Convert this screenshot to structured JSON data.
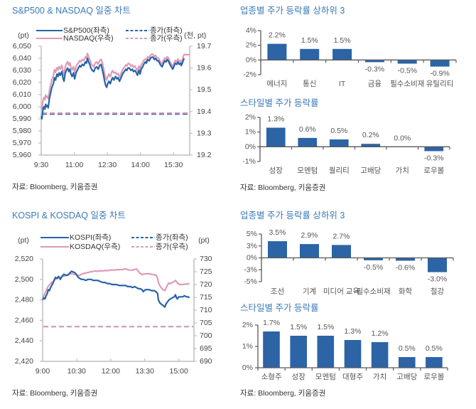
{
  "chart_data": [
    {
      "type": "line",
      "title": "S&P500 & NASDAQ 일중 차트",
      "source": "자료: Bloomberg, 키움증권",
      "ylabel_left": "(pt)",
      "ylabel_right": "(천, pt)",
      "legend_position": "top",
      "grid": false,
      "xlim": [
        "9:30",
        "16:14"
      ],
      "x_ticks": [
        "9:30",
        "11:00",
        "12:30",
        "14:00",
        "15:30"
      ],
      "ylim_left": [
        5960,
        6050
      ],
      "y_ticks_left": [
        "6,050",
        "6,040",
        "6,030",
        "6,020",
        "6,010",
        "6,000",
        "5,990",
        "5,980",
        "5,970",
        "5,960"
      ],
      "ylim_right": [
        19.2,
        19.7
      ],
      "y_ticks_right": [
        "19.7",
        "19.6",
        "19.5",
        "19.4",
        "19.3",
        "19.2"
      ],
      "x": [
        "9:30",
        "9:32",
        "9:34",
        "9:36",
        "9:38",
        "9:40",
        "9:42",
        "9:44",
        "9:47",
        "9:49",
        "9:51",
        "9:53",
        "9:56",
        "9:59",
        "10:03",
        "10:06",
        "10:09",
        "10:13",
        "10:16",
        "10:19",
        "10:22",
        "10:26",
        "10:29",
        "10:32",
        "10:35",
        "10:38",
        "10:42",
        "10:45",
        "10:48",
        "10:51",
        "10:54",
        "10:58",
        "11:01",
        "11:05",
        "11:08",
        "11:11",
        "11:15",
        "11:18",
        "11:22",
        "11:26",
        "11:30",
        "11:33",
        "11:36",
        "11:39",
        "11:42",
        "11:45",
        "11:49",
        "11:53",
        "11:57",
        "12:01",
        "12:05",
        "12:09",
        "12:13",
        "12:16",
        "12:19",
        "12:22",
        "12:25",
        "12:28",
        "12:31",
        "12:34",
        "12:38",
        "12:41",
        "12:44",
        "12:48",
        "12:52",
        "12:56",
        "12:59",
        "13:03",
        "13:06",
        "13:10",
        "13:13",
        "13:16",
        "13:20",
        "13:23",
        "13:26",
        "13:30",
        "13:34",
        "13:38",
        "13:41",
        "13:45",
        "13:49",
        "13:52",
        "13:56",
        "13:59",
        "14:02",
        "14:06",
        "14:09",
        "14:13",
        "14:16",
        "14:20",
        "14:24",
        "14:27",
        "14:31",
        "14:34",
        "14:38",
        "14:41",
        "14:45",
        "14:49",
        "14:52",
        "14:56",
        "14:59",
        "15:03",
        "15:06",
        "15:10",
        "15:13",
        "15:16",
        "15:20",
        "15:24",
        "15:28",
        "15:32",
        "15:35",
        "15:39",
        "15:42",
        "15:46",
        "15:49",
        "15:51",
        "15:54",
        "15:56",
        "15:59",
        "16:05",
        "16:14"
      ],
      "series": [
        {
          "name": "S&P500(좌측)",
          "axis": "left",
          "style": "solid",
          "color": "#2763a8",
          "values": [
            5992,
            5990,
            5996,
            5999,
            6000,
            5998,
            6002,
            6000,
            6001,
            5999,
            6004,
            6008,
            6012,
            6016,
            6019,
            6024,
            6022,
            6027,
            6025,
            6028,
            6026,
            6029,
            6024,
            6021,
            6027,
            6030,
            6032,
            6029,
            6031,
            6027,
            6025,
            6028,
            6023,
            6028,
            6030,
            6032,
            6034,
            6033,
            6035,
            6034,
            6037,
            6036,
            6040,
            6037,
            6035,
            6032,
            6030,
            6029,
            6032,
            6033,
            6031,
            6034,
            6035,
            6031,
            6027,
            6022,
            6018,
            6016,
            6019,
            6021,
            6019,
            6022,
            6024,
            6022,
            6025,
            6023,
            6024,
            6021,
            6023,
            6026,
            6028,
            6029,
            6031,
            6030,
            6032,
            6032,
            6030,
            6031,
            6029,
            6030,
            6028,
            6026,
            6030,
            6027,
            6031,
            6033,
            6035,
            6037,
            6036,
            6039,
            6038,
            6040,
            6041,
            6041,
            6039,
            6040,
            6038,
            6038,
            6036,
            6034,
            6033,
            6036,
            6038,
            6037,
            6039,
            6038,
            6035,
            6033,
            6031,
            6034,
            6036,
            6035,
            6037,
            6035,
            6036,
            6034,
            6036,
            6038,
            6040,
            null,
            null
          ]
        },
        {
          "name": "NASDAQ(우측)",
          "axis": "right",
          "style": "solid",
          "color": "#dd9bb8",
          "values": [
            19.42,
            19.409,
            19.443,
            19.459,
            19.465,
            19.454,
            19.476,
            19.465,
            19.47,
            19.459,
            19.48,
            19.503,
            19.525,
            19.547,
            19.564,
            19.592,
            19.58,
            19.602,
            19.591,
            19.607,
            19.596,
            19.613,
            19.585,
            19.568,
            19.602,
            19.618,
            19.629,
            19.613,
            19.624,
            19.602,
            19.591,
            19.607,
            19.579,
            19.607,
            19.618,
            19.623,
            19.634,
            19.628,
            19.64,
            19.634,
            19.651,
            19.645,
            19.667,
            19.651,
            19.64,
            19.623,
            19.612,
            19.606,
            19.623,
            19.628,
            19.617,
            19.634,
            19.64,
            19.627,
            19.605,
            19.577,
            19.555,
            19.544,
            19.56,
            19.572,
            19.56,
            19.577,
            19.588,
            19.577,
            19.581,
            19.57,
            19.575,
            19.558,
            19.57,
            19.586,
            19.597,
            19.603,
            19.614,
            19.609,
            19.62,
            19.62,
            19.609,
            19.614,
            19.603,
            19.609,
            19.597,
            19.586,
            19.609,
            19.592,
            19.614,
            19.625,
            19.636,
            19.641,
            19.635,
            19.652,
            19.646,
            19.658,
            19.663,
            19.663,
            19.652,
            19.658,
            19.646,
            19.646,
            19.635,
            19.624,
            19.619,
            19.635,
            19.646,
            19.641,
            19.652,
            19.646,
            19.63,
            19.619,
            19.608,
            19.624,
            19.635,
            19.63,
            19.641,
            19.63,
            19.635,
            19.624,
            19.635,
            19.652,
            19.662,
            19.661,
            19.661
          ]
        },
        {
          "name": "종가(좌측)",
          "axis": "left",
          "style": "dashed",
          "color": "#2763a8",
          "value": 5994
        },
        {
          "name": "종가(우측)",
          "axis": "right",
          "style": "dashed",
          "color": "#dd9bb8",
          "value": 19.393
        }
      ]
    },
    {
      "type": "bar",
      "title": "업종별 주가 등락률 상하위 3",
      "color": "#2c64a6",
      "categories": [
        "에너지",
        "통신",
        "IT",
        "금융",
        "필수소비재",
        "유틸리티"
      ],
      "values": [
        2.2,
        1.5,
        1.5,
        -0.3,
        -0.5,
        -0.9
      ],
      "value_labels": [
        "2.2%",
        "1.5%",
        "1.5%",
        "-0.3%",
        "-0.5%",
        "-0.9%"
      ],
      "ylim": [
        -2,
        4
      ],
      "y_ticks": [
        "4%",
        "2%",
        "0%",
        "-2%"
      ]
    },
    {
      "type": "bar",
      "title": "스타일별 주가 등락률",
      "source": "자료: Bloomberg, 키움증권",
      "color": "#2c64a6",
      "categories": [
        "성장",
        "모멘텀",
        "퀄리티",
        "고배당",
        "가치",
        "로우볼"
      ],
      "values": [
        1.3,
        0.6,
        0.5,
        0.2,
        0.0,
        -0.3
      ],
      "value_labels": [
        "1.3%",
        "0.6%",
        "0.5%",
        "0.2%",
        "0.0%",
        "-0.3%"
      ],
      "ylim": [
        -1,
        2
      ],
      "y_ticks": [
        "2%",
        "1%",
        "0%",
        "-1%"
      ]
    },
    {
      "type": "line",
      "title": "KOSPI & KOSDAQ 일중 차트",
      "source": "자료: Bloomberg, 키움증권",
      "ylabel_left": "(pt)",
      "ylabel_right": "(pt)",
      "legend_position": "top",
      "grid": false,
      "xlim": [
        "9:00",
        "15:40"
      ],
      "x_ticks": [
        "9:00",
        "10:30",
        "12:00",
        "13:30",
        "15:00"
      ],
      "ylim_left": [
        2420,
        2520
      ],
      "y_ticks_left": [
        "2,520",
        "2,500",
        "2,480",
        "2,460",
        "2,440",
        "2,420"
      ],
      "ylim_right": [
        690,
        730
      ],
      "y_ticks_right": [
        "730",
        "725",
        "720",
        "715",
        "710",
        "705",
        "700",
        "695",
        "690"
      ],
      "x": [
        "9:00",
        "9:03",
        "9:06",
        "9:09",
        "9:12",
        "9:15",
        "9:18",
        "9:21",
        "9:24",
        "9:27",
        "9:30",
        "9:34",
        "9:38",
        "9:42",
        "9:47",
        "9:51",
        "9:56",
        "10:01",
        "10:06",
        "10:11",
        "10:17",
        "10:21",
        "10:24",
        "10:29",
        "10:34",
        "10:38",
        "10:43",
        "10:48",
        "10:54",
        "11:00",
        "11:08",
        "11:14",
        "11:20",
        "11:26",
        "11:32",
        "11:39",
        "11:45",
        "11:51",
        "11:57",
        "12:03",
        "12:09",
        "12:15",
        "12:23",
        "12:32",
        "12:39",
        "12:45",
        "12:52",
        "12:58",
        "13:03",
        "13:08",
        "13:13",
        "13:17",
        "13:23",
        "13:26",
        "13:32",
        "13:41",
        "13:48",
        "13:55",
        "14:00",
        "14:04",
        "14:06",
        "14:10",
        "14:13",
        "14:17",
        "14:20",
        "14:23",
        "14:26",
        "14:30",
        "14:34",
        "14:38",
        "14:43",
        "14:48",
        "14:51",
        "14:54",
        "14:56",
        "15:00",
        "15:05",
        "15:10",
        "15:15",
        "15:20",
        "15:25",
        "15:28"
      ],
      "series": [
        {
          "name": "KOSPI(좌측)",
          "axis": "left",
          "style": "solid",
          "color": "#2763a8",
          "values": [
            2480,
            2482,
            2481,
            2484,
            2486,
            2490,
            2489,
            2492,
            2494,
            2496,
            2499,
            2502,
            2501,
            2503,
            2500,
            2503,
            2505,
            2504,
            2504,
            2506,
            2508,
            2507,
            2507,
            2505,
            2502,
            2501,
            2500,
            2500,
            2499,
            2500,
            2500,
            2499,
            2499,
            2499,
            2498,
            2497,
            2497,
            2496,
            2496,
            2495,
            2495,
            2495,
            2494,
            2494,
            2494,
            2493,
            2493,
            2492,
            2493,
            2492,
            2491,
            2491,
            2490,
            2488,
            2490,
            2490,
            2489,
            2489,
            2488,
            2486,
            2480,
            2477,
            2476,
            2475,
            2474,
            2473,
            2476,
            2478,
            2480,
            2481,
            2482,
            2483,
            2485,
            2482,
            2481,
            2483,
            2483,
            2483,
            2484,
            2483,
            2483,
            2482
          ]
        },
        {
          "name": "KOSDAQ(우측)",
          "axis": "right",
          "style": "solid",
          "color": "#dd9bb8",
          "values": [
            715.0,
            715.5,
            716.5,
            717.5,
            718.5,
            719.4,
            719.8,
            720.3,
            720.8,
            721.0,
            721.5,
            722.0,
            722.3,
            722.6,
            722.8,
            723.0,
            723.3,
            723.5,
            723.8,
            724.0,
            724.2,
            724.0,
            724.0,
            723.8,
            723.5,
            723.6,
            724.0,
            724.3,
            724.5,
            724.7,
            725.0,
            725.2,
            725.3,
            725.1,
            725.4,
            725.3,
            725.5,
            725.4,
            725.6,
            725.7,
            725.6,
            725.8,
            725.8,
            725.9,
            726.1,
            725.8,
            725.6,
            725.6,
            725.9,
            726.1,
            725.2,
            724.4,
            723.9,
            724.0,
            724.2,
            724.2,
            724.0,
            723.8,
            723.6,
            722.5,
            720.8,
            719.5,
            718.8,
            718.2,
            717.8,
            717.6,
            718.6,
            719.8,
            720.6,
            720.3,
            720.8,
            721.2,
            721.6,
            721.0,
            720.6,
            720.1,
            720.0,
            720.0,
            720.2,
            720.1,
            720.3,
            720.3
          ]
        },
        {
          "name": "종가(좌측)",
          "axis": "left",
          "style": "dashed",
          "color": "#2763a8",
          "value": 2454
        },
        {
          "name": "종가(우측)",
          "axis": "right",
          "style": "dashed",
          "color": "#dd9bb8",
          "value": 703.6
        }
      ]
    },
    {
      "type": "bar",
      "title": "업종별 주가 등락률 상하위 3",
      "color": "#2c64a6",
      "categories": [
        "조선",
        "기계",
        "미디어 교육",
        "필수소비재",
        "화학",
        "철강"
      ],
      "values": [
        3.5,
        2.9,
        2.7,
        -0.5,
        -0.6,
        -3.0
      ],
      "value_labels": [
        "3.5%",
        "2.9%",
        "2.7%",
        "-0.5%",
        "-0.6%",
        "-3.0%"
      ],
      "ylim": [
        -5,
        5
      ],
      "y_ticks": [
        "5%",
        "3%",
        "0%",
        "-3%",
        "-5%"
      ]
    },
    {
      "type": "bar",
      "title": "스타일별 주가 등락률",
      "source": "자료: Bloomberg, 키움증권",
      "color": "#2c64a6",
      "categories": [
        "소형주",
        "성장",
        "모멘텀",
        "대형주",
        "가치",
        "고배당",
        "로우볼"
      ],
      "values": [
        1.7,
        1.5,
        1.5,
        1.3,
        1.2,
        0.5,
        0.5
      ],
      "value_labels": [
        "1.7%",
        "1.5%",
        "1.5%",
        "1.3%",
        "1.2%",
        "0.5%",
        "0.5%"
      ],
      "ylim": [
        0,
        2
      ],
      "y_ticks": [
        "2%",
        "1%",
        "0%"
      ]
    }
  ]
}
